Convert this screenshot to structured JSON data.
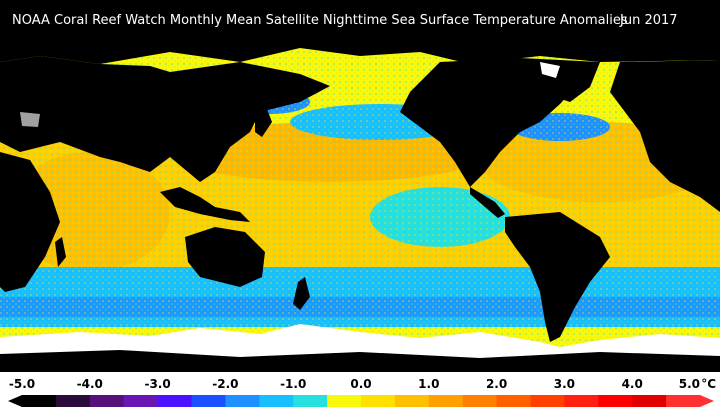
{
  "title": "NOAA Coral Reef Watch Monthly Mean Satellite Nighttime Sea Surface Temperature Anomalies",
  "date": "Jun 2017",
  "colorbar": {
    "unit": "°C",
    "tick_labels": [
      "-5.0",
      "-4.0",
      "-3.0",
      "-2.0",
      "-1.0",
      "0.0",
      "1.0",
      "2.0",
      "3.0",
      "4.0",
      "5.0"
    ],
    "colors": [
      "#000000",
      "#2a0a3a",
      "#55107a",
      "#6a14b4",
      "#4a10ff",
      "#1a50ff",
      "#1e90ff",
      "#18bfff",
      "#26e0e0",
      "#f8f80a",
      "#ffe000",
      "#ffc000",
      "#ffa000",
      "#ff8000",
      "#ff6000",
      "#ff4000",
      "#ff2010",
      "#ff0000",
      "#e00000",
      "#ff3030"
    ]
  },
  "legend_colors": {
    "land": "#000000",
    "ice": "#ffffff",
    "cold_strong": "#1a50ff",
    "cold": "#1e90ff",
    "cool": "#18bfff",
    "neutral": "#26e0e0",
    "warm": "#f8f80a",
    "warmer": "#ffc000",
    "hot": "#ff8000",
    "hotspot": "#ff2010"
  }
}
